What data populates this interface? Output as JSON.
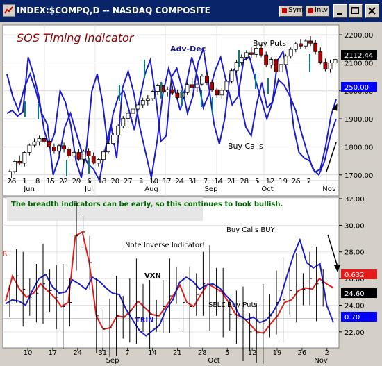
{
  "window": {
    "title": "INDEX:$COMPQ,D -- NASDAQ COMPOSITE",
    "sym_label": "Sym",
    "intv_label": "Intv"
  },
  "colors": {
    "titlebar": "#0a246a",
    "panel_bg": "#ffffff",
    "blue": "#1c1cc8",
    "red": "#e41c1c",
    "green": "#008080",
    "note_green": "#006400",
    "title_red": "#8b0000",
    "flag_blue": "#0000ff",
    "flag_red": "#ff0000",
    "flag_black": "#000000"
  },
  "chart_data": [
    {
      "type": "ohlc+line",
      "title": "SOS Timing Indicator",
      "x_day_labels": [
        "26",
        "1",
        "8",
        "15",
        "22",
        "29",
        "6",
        "13",
        "20",
        "27",
        "3",
        "10",
        "17",
        "24",
        "31",
        "7",
        "14",
        "21",
        "28",
        "5",
        "12",
        "19",
        "26",
        "2"
      ],
      "x_month_labels": [
        "Jun",
        "Jul",
        "Aug",
        "Sep",
        "Oct",
        "Nov"
      ],
      "y_ticks": [
        "2200.00",
        "2100.00",
        "2000.00",
        "1900.00",
        "1800.00",
        "1700.00"
      ],
      "ylim": [
        1640,
        2230
      ],
      "price_flag": "2112.44",
      "indicator_flag": "250.00",
      "annotations": [
        "Adv-Dec",
        "Buy Puts",
        "Buy Calls"
      ],
      "series": [
        {
          "name": "Adv-Dec",
          "values": [
            1920,
            1930,
            1910,
            1925,
            2120,
            2060,
            1980,
            1860,
            1800,
            1850,
            2000,
            1960,
            1880,
            1750,
            1690,
            1800,
            2000,
            2060,
            1960,
            1800,
            1920,
            1980,
            2000,
            1930,
            1860,
            1970,
            2060,
            2110,
            1980,
            1820,
            1840,
            2050,
            2080,
            2010,
            1920,
            1980,
            2100,
            2150,
            2020,
            1880,
            1810,
            1900,
            2060,
            2080,
            1960,
            1870,
            1840,
            1950,
            2030,
            1940,
            1960,
            2110,
            2140,
            2040,
            1870,
            1780,
            1760,
            1750,
            1710,
            1720,
            1800,
            1910,
            1970
          ]
        },
        {
          "name": "Adv-Dec (ridge)",
          "values": [
            2060,
            1980,
            1930,
            2010,
            2060,
            2000,
            1920,
            1880,
            1700,
            1760,
            1870,
            1920,
            1850,
            1780,
            1740,
            1720,
            1680,
            1790,
            1880,
            1760,
            2010,
            2070,
            1990,
            1870,
            1780,
            1690,
            1820,
            1990,
            2080,
            2010,
            1930,
            2020,
            2120,
            2050,
            1940,
            1990,
            2070,
            2120,
            2030,
            1950,
            1980,
            2110,
            2120,
            2040,
            1970,
            1900,
            1960,
            2040,
            2020,
            1980,
            1930,
            1850,
            1780,
            1720,
            1700,
            1750,
            1840,
            1900
          ]
        }
      ],
      "ohlc": [
        [
          1688,
          1718,
          1680,
          1712
        ],
        [
          1712,
          1755,
          1705,
          1748
        ],
        [
          1748,
          1770,
          1735,
          1742
        ],
        [
          1742,
          1785,
          1730,
          1780
        ],
        [
          1780,
          1812,
          1770,
          1806
        ],
        [
          1806,
          1830,
          1798,
          1818
        ],
        [
          1818,
          1840,
          1805,
          1830
        ],
        [
          1830,
          1845,
          1812,
          1820
        ],
        [
          1820,
          1830,
          1795,
          1800
        ],
        [
          1800,
          1812,
          1775,
          1785
        ],
        [
          1785,
          1810,
          1770,
          1804
        ],
        [
          1804,
          1815,
          1780,
          1792
        ],
        [
          1792,
          1800,
          1760,
          1768
        ],
        [
          1768,
          1790,
          1760,
          1780
        ],
        [
          1780,
          1792,
          1750,
          1756
        ],
        [
          1756,
          1790,
          1735,
          1784
        ],
        [
          1784,
          1795,
          1760,
          1768
        ],
        [
          1768,
          1780,
          1738,
          1742
        ],
        [
          1742,
          1760,
          1730,
          1755
        ],
        [
          1755,
          1790,
          1748,
          1782
        ],
        [
          1782,
          1820,
          1775,
          1812
        ],
        [
          1812,
          1850,
          1806,
          1842
        ],
        [
          1842,
          1880,
          1835,
          1874
        ],
        [
          1874,
          1910,
          1866,
          1902
        ],
        [
          1902,
          1930,
          1890,
          1920
        ],
        [
          1920,
          1945,
          1908,
          1935
        ],
        [
          1935,
          1960,
          1920,
          1950
        ],
        [
          1950,
          1975,
          1940,
          1966
        ],
        [
          1966,
          1985,
          1948,
          1972
        ],
        [
          1972,
          2005,
          1965,
          1998
        ],
        [
          1998,
          2025,
          1985,
          2018
        ],
        [
          2018,
          2030,
          1990,
          1996
        ],
        [
          1996,
          2015,
          1980,
          2004
        ],
        [
          2004,
          2018,
          1985,
          1992
        ],
        [
          1992,
          2005,
          1968,
          1976
        ],
        [
          1976,
          2000,
          1960,
          1994
        ],
        [
          1994,
          2030,
          1985,
          2022
        ],
        [
          2022,
          2045,
          2005,
          2012
        ],
        [
          2012,
          2030,
          1995,
          2024
        ],
        [
          2024,
          2060,
          2018,
          2052
        ],
        [
          2052,
          2065,
          2020,
          2030
        ],
        [
          2030,
          2040,
          1995,
          2004
        ],
        [
          2004,
          2012,
          1975,
          1985
        ],
        [
          1985,
          2010,
          1970,
          2002
        ],
        [
          2002,
          2040,
          1995,
          2034
        ],
        [
          2034,
          2080,
          2026,
          2072
        ],
        [
          2072,
          2110,
          2064,
          2102
        ],
        [
          2102,
          2130,
          2090,
          2120
        ],
        [
          2120,
          2145,
          2108,
          2136
        ],
        [
          2136,
          2155,
          2118,
          2130
        ],
        [
          2130,
          2160,
          2120,
          2152
        ],
        [
          2152,
          2165,
          2120,
          2128
        ],
        [
          2128,
          2140,
          2085,
          2092
        ],
        [
          2092,
          2120,
          2080,
          2112
        ],
        [
          2112,
          2125,
          2060,
          2068
        ],
        [
          2068,
          2100,
          2055,
          2094
        ],
        [
          2094,
          2130,
          2085,
          2124
        ],
        [
          2124,
          2155,
          2115,
          2148
        ],
        [
          2148,
          2175,
          2138,
          2168
        ],
        [
          2168,
          2185,
          2150,
          2160
        ],
        [
          2160,
          2185,
          2150,
          2178
        ],
        [
          2178,
          2195,
          2160,
          2170
        ],
        [
          2170,
          2182,
          2130,
          2140
        ],
        [
          2140,
          2155,
          2095,
          2102
        ],
        [
          2102,
          2115,
          2070,
          2078
        ],
        [
          2078,
          2110,
          2065,
          2100
        ],
        [
          2100,
          2125,
          2088,
          2112
        ]
      ],
      "ohlc_start_x": 14,
      "ohlc_spacing": 7.1
    },
    {
      "type": "line",
      "note": "The breadth indicators can be early, so this continues to look bullish.",
      "x_day_labels": [
        "10",
        "17",
        "24",
        "31",
        "7",
        "14",
        "21",
        "28",
        "5",
        "12",
        "19",
        "26",
        "2"
      ],
      "x_month_labels": [
        "Sep",
        "Oct",
        "Nov"
      ],
      "y_ticks": [
        "32.00",
        "30.00",
        "28.00",
        "26.00",
        "24.00",
        "22.00"
      ],
      "ylim": [
        21,
        32
      ],
      "annotations": [
        "Note Inverse Indicator!",
        "Buy Calls BUY",
        "VXN",
        "TRIN",
        "SELL Buy Puts"
      ],
      "red_flag": "0.632",
      "black_flag": "24.60",
      "blue_flag": "0.70",
      "series": [
        {
          "name": "VXN",
          "values": [
            24.3,
            26.2,
            25.2,
            24.6,
            24.9,
            25.6,
            25.1,
            24.6,
            23.9,
            24.2,
            29.2,
            29.5,
            27.2,
            23.2,
            22.2,
            22.3,
            23.2,
            23.1,
            23.6,
            24.3,
            23.8,
            23.3,
            23.2,
            23.9,
            24.7,
            25.5,
            24.2,
            23.9,
            24.8,
            25.6,
            25.3,
            25.0,
            24.2,
            23.3,
            23.1,
            22.6,
            22.0,
            21.9,
            22.6,
            23.2,
            24.2,
            24.4,
            25.1,
            25.3,
            25.2,
            26.0,
            25.6,
            25.3
          ]
        },
        {
          "name": "TRIN",
          "values": [
            24.1,
            24.4,
            24.3,
            24.0,
            25.1,
            26.0,
            26.3,
            25.4,
            24.9,
            25.0,
            25.9,
            25.6,
            25.2,
            26.1,
            25.8,
            25.3,
            24.9,
            24.8,
            23.7,
            22.9,
            22.1,
            21.7,
            22.1,
            22.5,
            23.7,
            24.4,
            25.7,
            26.1,
            25.8,
            25.2,
            25.5,
            25.6,
            25.3,
            24.7,
            24.2,
            23.2,
            22.9,
            23.1,
            22.7,
            22.9,
            23.5,
            24.4,
            26.1,
            27.7,
            28.9,
            27.2,
            26.8,
            27.1,
            24.0,
            22.7
          ]
        }
      ]
    }
  ]
}
